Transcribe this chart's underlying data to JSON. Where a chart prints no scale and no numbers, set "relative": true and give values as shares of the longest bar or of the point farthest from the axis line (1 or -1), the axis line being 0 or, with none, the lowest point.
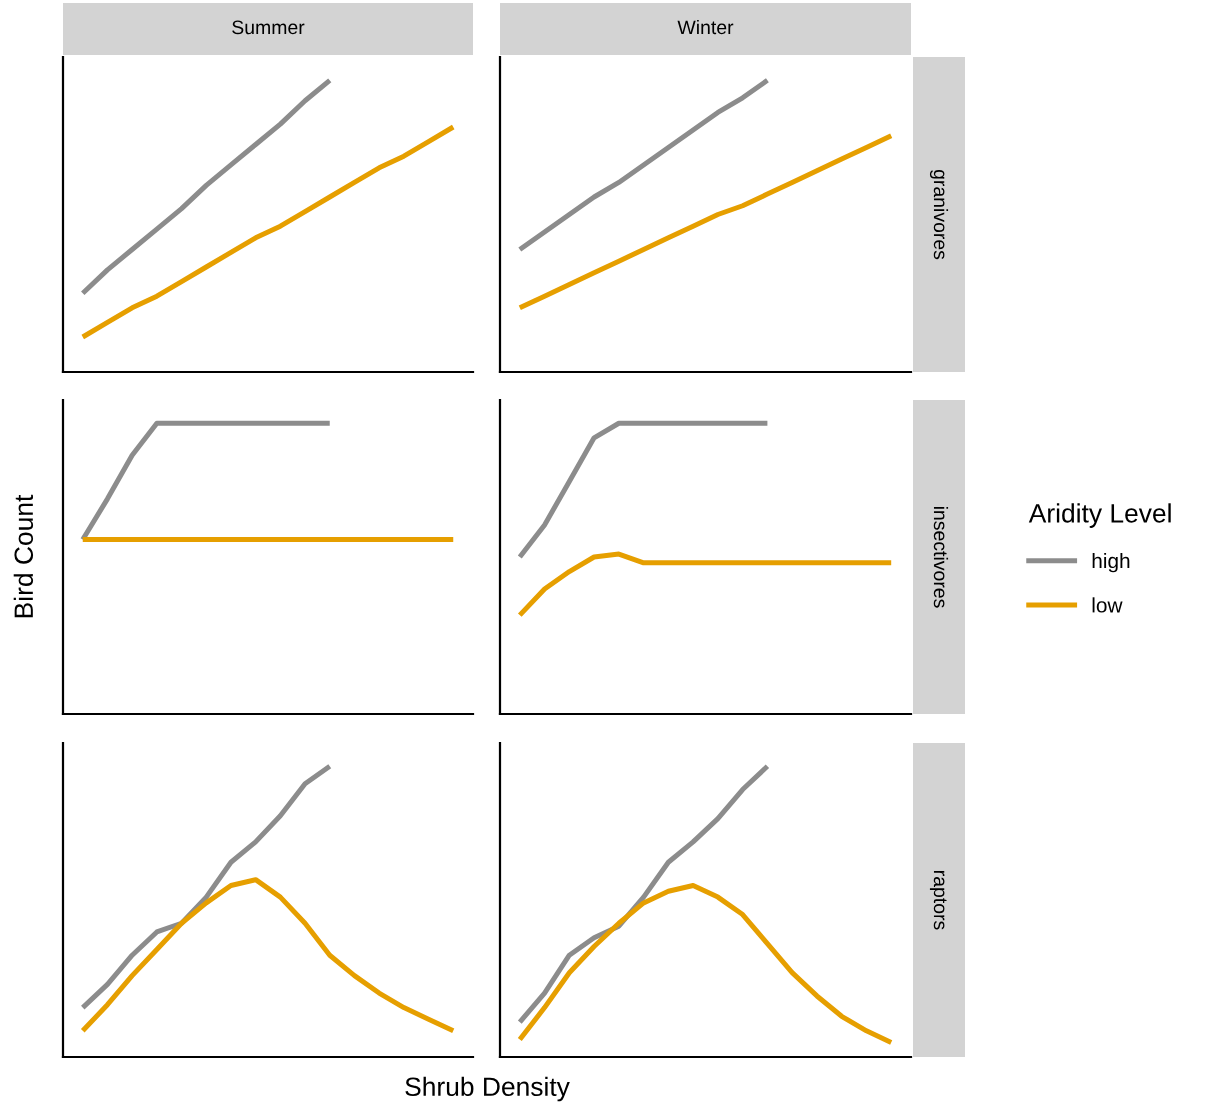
{
  "chart_data": [
    {
      "type": "line",
      "title": "Summer",
      "legend": "right",
      "legend_title": "Aridity Level",
      "relative": true,
      "categories": [
        null,
        null,
        null,
        null,
        null,
        null,
        null,
        null,
        null,
        null,
        null,
        null,
        null,
        null,
        null,
        null
      ],
      "series": [
        {
          "name": "high",
          "color": "#8c8c8c",
          "values": [
            0.27,
            0.35,
            0.42,
            0.49,
            0.56,
            0.64,
            0.71,
            0.78,
            0.85,
            0.93,
            1.0,
            null,
            null,
            null,
            null,
            null
          ]
        },
        {
          "name": "low",
          "color": "#e69f00",
          "values": [
            0.12,
            0.17,
            0.22,
            0.26,
            0.31,
            0.36,
            0.41,
            0.46,
            0.5,
            0.55,
            0.6,
            0.65,
            0.7,
            0.74,
            0.79,
            0.84
          ]
        }
      ]
    },
    {
      "type": "line",
      "title": "Winter",
      "y2label": "granivores",
      "relative": true,
      "categories": [
        null,
        null,
        null,
        null,
        null,
        null,
        null,
        null,
        null,
        null,
        null,
        null,
        null,
        null,
        null,
        null
      ],
      "series": [
        {
          "color": "#8c8c8c",
          "values": [
            0.42,
            0.48,
            0.54,
            0.6,
            0.65,
            0.71,
            0.77,
            0.83,
            0.89,
            0.94,
            1.0,
            null,
            null,
            null,
            null,
            null
          ]
        },
        {
          "color": "#e69f00",
          "values": [
            0.22,
            0.26,
            0.3,
            0.34,
            0.38,
            0.42,
            0.46,
            0.5,
            0.54,
            0.57,
            0.61,
            0.65,
            0.69,
            0.73,
            0.77,
            0.81
          ]
        }
      ]
    },
    {
      "type": "line",
      "ylabel": "Bird Count",
      "relative": true,
      "categories": [
        null,
        null,
        null,
        null,
        null,
        null,
        null,
        null,
        null,
        null,
        null,
        null,
        null,
        null,
        null,
        null
      ],
      "series": [
        {
          "color": "#8c8c8c",
          "values": [
            0.6,
            0.74,
            0.89,
            1.0,
            1.0,
            1.0,
            1.0,
            1.0,
            1.0,
            1.0,
            1.0,
            null,
            null,
            null,
            null,
            null
          ]
        },
        {
          "color": "#e69f00",
          "values": [
            0.6,
            0.6,
            0.6,
            0.6,
            0.6,
            0.6,
            0.6,
            0.6,
            0.6,
            0.6,
            0.6,
            0.6,
            0.6,
            0.6,
            0.6,
            0.6
          ]
        }
      ]
    },
    {
      "type": "line",
      "y2label": "insectivores",
      "relative": true,
      "categories": [
        null,
        null,
        null,
        null,
        null,
        null,
        null,
        null,
        null,
        null,
        null,
        null,
        null,
        null,
        null,
        null
      ],
      "series": [
        {
          "color": "#8c8c8c",
          "values": [
            0.54,
            0.65,
            0.8,
            0.95,
            1.0,
            1.0,
            1.0,
            1.0,
            1.0,
            1.0,
            1.0,
            null,
            null,
            null,
            null,
            null
          ]
        },
        {
          "color": "#e69f00",
          "values": [
            0.34,
            0.43,
            0.49,
            0.54,
            0.55,
            0.52,
            0.52,
            0.52,
            0.52,
            0.52,
            0.52,
            0.52,
            0.52,
            0.52,
            0.52,
            0.52
          ]
        }
      ]
    },
    {
      "type": "line",
      "xlabel": "Shrub Density",
      "relative": true,
      "categories": [
        null,
        null,
        null,
        null,
        null,
        null,
        null,
        null,
        null,
        null,
        null,
        null,
        null,
        null,
        null,
        null
      ],
      "series": [
        {
          "color": "#8c8c8c",
          "values": [
            0.17,
            0.25,
            0.35,
            0.43,
            0.46,
            0.55,
            0.67,
            0.74,
            0.83,
            0.94,
            1.0,
            null,
            null,
            null,
            null,
            null
          ]
        },
        {
          "color": "#e69f00",
          "values": [
            0.09,
            0.18,
            0.28,
            0.37,
            0.46,
            0.53,
            0.59,
            0.61,
            0.55,
            0.46,
            0.35,
            0.28,
            0.22,
            0.17,
            0.13,
            0.09
          ]
        }
      ]
    },
    {
      "type": "line",
      "y2label": "raptors",
      "relative": true,
      "categories": [
        null,
        null,
        null,
        null,
        null,
        null,
        null,
        null,
        null,
        null,
        null,
        null,
        null,
        null,
        null,
        null
      ],
      "series": [
        {
          "color": "#8c8c8c",
          "values": [
            0.12,
            0.22,
            0.35,
            0.41,
            0.45,
            0.55,
            0.67,
            0.74,
            0.82,
            0.92,
            1.0,
            null,
            null,
            null,
            null,
            null
          ]
        },
        {
          "color": "#e69f00",
          "values": [
            0.06,
            0.17,
            0.29,
            0.38,
            0.46,
            0.53,
            0.57,
            0.59,
            0.55,
            0.49,
            0.39,
            0.29,
            0.21,
            0.14,
            0.09,
            0.05
          ]
        }
      ]
    }
  ]
}
